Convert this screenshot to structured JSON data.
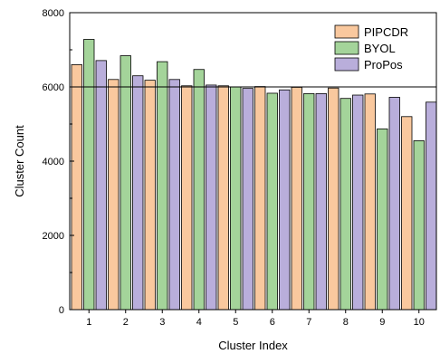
{
  "chart_data": {
    "type": "bar",
    "title": "",
    "xlabel": "Cluster Index",
    "ylabel": "Cluster Count",
    "categories": [
      "1",
      "2",
      "3",
      "4",
      "5",
      "6",
      "7",
      "8",
      "9",
      "10"
    ],
    "ylim": [
      0,
      8000
    ],
    "yticks": [
      0,
      2000,
      4000,
      6000,
      8000
    ],
    "reference_line": 6000,
    "legend_position": "top-right",
    "grid": false,
    "series": [
      {
        "name": "PIPCDR",
        "color": "#F9C89E",
        "values": [
          6600,
          6200,
          6180,
          6030,
          6030,
          6010,
          5990,
          5970,
          5810,
          5200
        ]
      },
      {
        "name": "BYOL",
        "color": "#A4D49A",
        "values": [
          7280,
          6840,
          6680,
          6470,
          6000,
          5830,
          5820,
          5690,
          4870,
          4550
        ]
      },
      {
        "name": "ProPos",
        "color": "#B9AEDB",
        "values": [
          6710,
          6300,
          6200,
          6050,
          5960,
          5920,
          5820,
          5780,
          5720,
          5590
        ]
      }
    ]
  }
}
